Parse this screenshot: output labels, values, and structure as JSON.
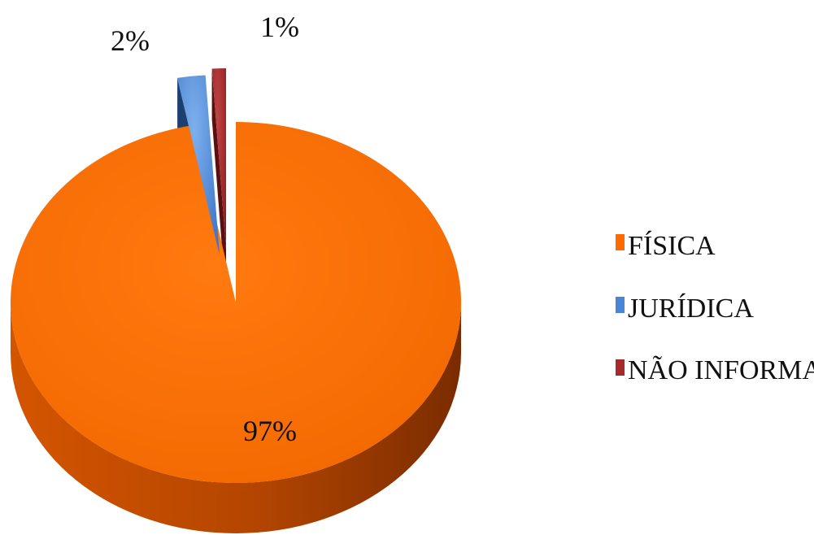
{
  "chart_data": {
    "type": "pie",
    "style": "3d-exploded",
    "slices": [
      {
        "label": "FÍSICA",
        "value": 97,
        "pct_label": "97%",
        "color": "#ff6b00"
      },
      {
        "label": "JURÍDICA",
        "value": 2,
        "pct_label": "2%",
        "color": "#4a86d8"
      },
      {
        "label": "NÃO INFORMADO",
        "value": 1,
        "pct_label": "1%",
        "color": "#a52a2a"
      }
    ],
    "legend": "right"
  }
}
